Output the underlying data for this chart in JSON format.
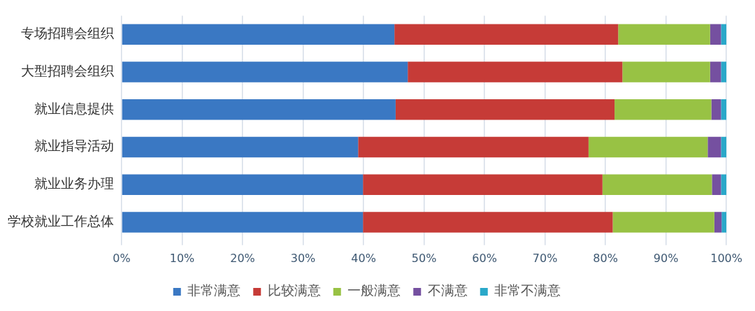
{
  "chart_data": {
    "type": "bar",
    "orientation": "horizontal",
    "stacked": true,
    "categories": [
      "专场招聘会组织",
      "大型招聘会组织",
      "就业信息提供",
      "就业指导活动",
      "就业业务办理",
      "学校就业工作总体"
    ],
    "series": [
      {
        "name": "非常满意",
        "color": "#3a78c3",
        "values": [
          45.1,
          47.3,
          45.3,
          39.1,
          39.9,
          39.9
        ]
      },
      {
        "name": "比较满意",
        "color": "#c63b37",
        "values": [
          37.0,
          35.5,
          36.2,
          38.1,
          39.6,
          41.3
        ]
      },
      {
        "name": "一般满意",
        "color": "#98c244",
        "values": [
          15.2,
          14.5,
          16.0,
          19.7,
          18.1,
          16.8
        ]
      },
      {
        "name": "不满意",
        "color": "#7550a0",
        "values": [
          1.8,
          1.8,
          1.6,
          2.2,
          1.5,
          1.2
        ]
      },
      {
        "name": "非常不满意",
        "color": "#2aa8c9",
        "values": [
          0.9,
          0.9,
          0.9,
          0.9,
          0.9,
          0.8
        ]
      }
    ],
    "xlim": [
      0,
      100
    ],
    "xticks": [
      {
        "value": 0,
        "label": "0%"
      },
      {
        "value": 10,
        "label": "10%"
      },
      {
        "value": 20,
        "label": "20%"
      },
      {
        "value": 30,
        "label": "30%"
      },
      {
        "value": 40,
        "label": "40%"
      },
      {
        "value": 50,
        "label": "50%"
      },
      {
        "value": 60,
        "label": "60%"
      },
      {
        "value": 70,
        "label": "70%"
      },
      {
        "value": 80,
        "label": "80%"
      },
      {
        "value": 90,
        "label": "90%"
      },
      {
        "value": 100,
        "label": "100%"
      }
    ],
    "grid": "x",
    "legend": "bottom"
  }
}
